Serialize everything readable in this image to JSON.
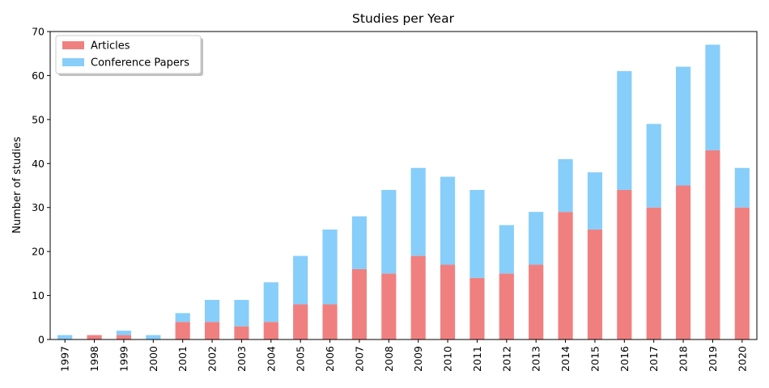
{
  "chart_data": {
    "type": "bar",
    "stacked": true,
    "title": "Studies per Year",
    "xlabel": "",
    "ylabel": "Number of studies",
    "ylim": [
      0,
      70
    ],
    "yticks": [
      0,
      10,
      20,
      30,
      40,
      50,
      60,
      70
    ],
    "categories": [
      "1997",
      "1998",
      "1999",
      "2000",
      "2001",
      "2002",
      "2003",
      "2004",
      "2005",
      "2006",
      "2007",
      "2008",
      "2009",
      "2010",
      "2011",
      "2012",
      "2013",
      "2014",
      "2015",
      "2016",
      "2017",
      "2018",
      "2019",
      "2020"
    ],
    "series": [
      {
        "name": "Articles",
        "color": "#f08080",
        "values": [
          0,
          1,
          1,
          0,
          4,
          4,
          3,
          4,
          8,
          8,
          16,
          15,
          19,
          17,
          14,
          15,
          17,
          29,
          25,
          34,
          30,
          35,
          43,
          30
        ]
      },
      {
        "name": "Conference Papers",
        "color": "#87cefa",
        "values": [
          1,
          0,
          1,
          1,
          2,
          5,
          6,
          9,
          11,
          17,
          12,
          19,
          20,
          20,
          20,
          11,
          12,
          12,
          13,
          27,
          19,
          27,
          24,
          9
        ]
      }
    ],
    "legend": "top-left",
    "grid": false
  }
}
